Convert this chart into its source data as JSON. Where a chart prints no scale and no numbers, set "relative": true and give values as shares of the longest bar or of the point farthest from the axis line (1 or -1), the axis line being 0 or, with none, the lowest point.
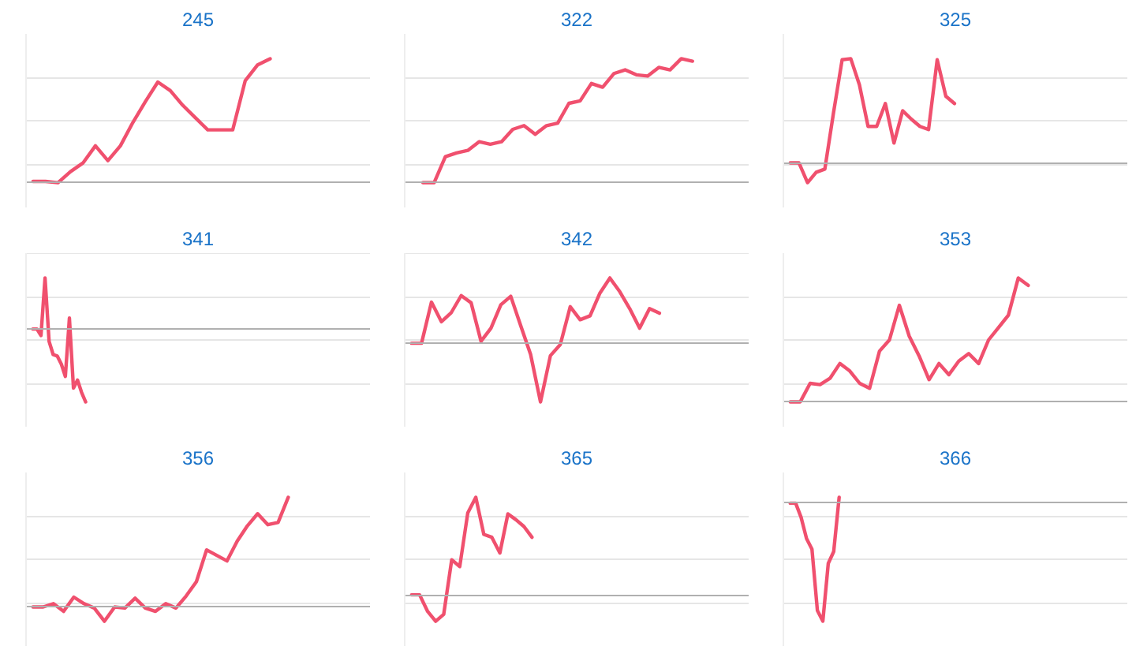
{
  "chart_data": [
    {
      "type": "line",
      "title": "245",
      "relative": true,
      "grid": "y",
      "color": "#f0506e",
      "categories": [
        null,
        null,
        null,
        null,
        null,
        null,
        null,
        null,
        null,
        null,
        null,
        null,
        null,
        null,
        null,
        null,
        null,
        null,
        null,
        null,
        null,
        null,
        null,
        null,
        null,
        null,
        null,
        null
      ],
      "values": [
        0,
        0,
        -0.01,
        0.08,
        0.15,
        0.29,
        0.17,
        0.29,
        0.48,
        0.65,
        0.81,
        0.74,
        0.62,
        0.52,
        0.42,
        0.42,
        0.42,
        0.82,
        0.95,
        1.0,
        null,
        null,
        null,
        null,
        null,
        null,
        null,
        null
      ]
    },
    {
      "type": "line",
      "title": "322",
      "relative": true,
      "grid": "y",
      "color": "#f0506e",
      "categories": [
        null,
        null,
        null,
        null,
        null,
        null,
        null,
        null,
        null,
        null,
        null,
        null,
        null,
        null,
        null,
        null,
        null,
        null,
        null,
        null,
        null,
        null,
        null,
        null,
        null,
        null,
        null,
        null,
        null,
        null,
        null
      ],
      "values": [
        null,
        0,
        0,
        0.21,
        0.24,
        0.26,
        0.33,
        0.31,
        0.33,
        0.43,
        0.46,
        0.39,
        0.46,
        0.48,
        0.64,
        0.66,
        0.8,
        0.77,
        0.88,
        0.91,
        0.87,
        0.86,
        0.93,
        0.91,
        1.0,
        0.98,
        null,
        null,
        null,
        null,
        null
      ]
    },
    {
      "type": "line",
      "title": "325",
      "relative": true,
      "grid": "y",
      "color": "#f0506e",
      "categories": [
        null,
        null,
        null,
        null,
        null,
        null,
        null,
        null,
        null,
        null,
        null,
        null,
        null,
        null,
        null,
        null,
        null,
        null,
        null,
        null,
        null,
        null,
        null,
        null,
        null,
        null,
        null,
        null,
        null,
        null,
        null,
        null,
        null,
        null,
        null,
        null,
        null,
        null,
        null,
        null
      ],
      "values": [
        0,
        0,
        -0.19,
        -0.09,
        -0.06,
        0.48,
        0.99,
        1.0,
        0.75,
        0.35,
        0.35,
        0.57,
        0.19,
        0.5,
        0.42,
        0.35,
        0.32,
        0.99,
        0.64,
        0.57,
        null,
        null,
        null,
        null,
        null,
        null,
        null,
        null,
        null,
        null,
        null,
        null,
        null,
        null,
        null,
        null,
        null,
        null,
        null,
        null
      ]
    },
    {
      "type": "line",
      "title": "341",
      "relative": true,
      "grid": "y",
      "color": "#f0506e",
      "categories": [
        null,
        null,
        null,
        null,
        null,
        null,
        null,
        null,
        null,
        null,
        null,
        null,
        null,
        null,
        null,
        null,
        null,
        null,
        null,
        null,
        null,
        null,
        null,
        null,
        null,
        null,
        null,
        null,
        null,
        null,
        null,
        null,
        null,
        null,
        null,
        null,
        null,
        null,
        null,
        null,
        null,
        null,
        null,
        null,
        null,
        null,
        null,
        null,
        null,
        null,
        null,
        null,
        null,
        null,
        null,
        null,
        null,
        null,
        null,
        null,
        null,
        null,
        null,
        null,
        null,
        null,
        null,
        null,
        null,
        null,
        null,
        null,
        null,
        null,
        null,
        null,
        null,
        null,
        null,
        null,
        null,
        null,
        null,
        null
      ],
      "values": [
        0,
        0,
        -0.09,
        0.7,
        -0.17,
        -0.35,
        -0.37,
        -0.48,
        -0.65,
        0.15,
        -0.81,
        -0.7,
        -0.87,
        -1.0,
        null,
        null,
        null,
        null,
        null,
        null,
        null,
        null,
        null,
        null,
        null,
        null,
        null,
        null,
        null,
        null,
        null,
        null,
        null,
        null,
        null,
        null,
        null,
        null,
        null,
        null,
        null,
        null,
        null,
        null,
        null,
        null,
        null,
        null,
        null,
        null,
        null,
        null,
        null,
        null,
        null,
        null,
        null,
        null,
        null,
        null,
        null,
        null,
        null,
        null,
        null,
        null,
        null,
        null,
        null,
        null,
        null,
        null,
        null,
        null,
        null,
        null,
        null,
        null,
        null,
        null,
        null,
        null,
        null,
        null
      ]
    },
    {
      "type": "line",
      "title": "342",
      "relative": true,
      "grid": "y",
      "color": "#f0506e",
      "categories": [
        null,
        null,
        null,
        null,
        null,
        null,
        null,
        null,
        null,
        null,
        null,
        null,
        null,
        null,
        null,
        null,
        null,
        null,
        null,
        null,
        null,
        null,
        null,
        null,
        null,
        null,
        null,
        null,
        null,
        null,
        null,
        null,
        null,
        null,
        null
      ],
      "values": [
        0,
        0,
        0.63,
        0.33,
        0.47,
        0.73,
        0.62,
        0.03,
        0.23,
        0.59,
        0.72,
        0.27,
        -0.17,
        -0.9,
        -0.19,
        -0.02,
        0.56,
        0.36,
        0.42,
        0.77,
        1.0,
        0.79,
        0.53,
        0.23,
        0.53,
        0.46,
        null,
        null,
        null,
        null,
        null,
        null,
        null,
        null,
        null
      ]
    },
    {
      "type": "line",
      "title": "353",
      "relative": true,
      "grid": "y",
      "color": "#f0506e",
      "categories": [
        null,
        null,
        null,
        null,
        null,
        null,
        null,
        null,
        null,
        null,
        null,
        null,
        null,
        null,
        null,
        null,
        null,
        null,
        null,
        null,
        null,
        null,
        null,
        null,
        null,
        null,
        null,
        null,
        null,
        null,
        null,
        null,
        null,
        null,
        null
      ],
      "values": [
        0,
        0,
        0.15,
        0.14,
        0.19,
        0.31,
        0.25,
        0.15,
        0.11,
        0.41,
        0.5,
        0.78,
        0.53,
        0.37,
        0.18,
        0.31,
        0.22,
        0.33,
        0.39,
        0.31,
        0.5,
        0.6,
        0.7,
        1.0,
        0.94,
        null,
        null,
        null,
        null,
        null,
        null,
        null,
        null,
        null,
        null
      ]
    },
    {
      "type": "line",
      "title": "356",
      "relative": true,
      "grid": "y",
      "color": "#f0506e",
      "categories": [
        null,
        null,
        null,
        null,
        null,
        null,
        null,
        null,
        null,
        null,
        null,
        null,
        null,
        null,
        null,
        null,
        null,
        null,
        null,
        null,
        null,
        null,
        null,
        null,
        null,
        null,
        null,
        null,
        null,
        null,
        null,
        null,
        null,
        null
      ],
      "values": [
        0,
        0,
        0.03,
        -0.04,
        0.09,
        0.03,
        -0.01,
        -0.13,
        0,
        -0.01,
        0.08,
        -0.01,
        -0.04,
        0.03,
        -0.01,
        0.1,
        0.23,
        0.52,
        0.47,
        0.42,
        0.6,
        0.74,
        0.85,
        0.75,
        0.77,
        1.0,
        null,
        null,
        null,
        null,
        null,
        null,
        null,
        null
      ]
    },
    {
      "type": "line",
      "title": "365",
      "relative": true,
      "grid": "y",
      "color": "#f0506e",
      "categories": [
        null,
        null,
        null,
        null,
        null,
        null,
        null,
        null,
        null,
        null,
        null,
        null,
        null,
        null,
        null,
        null,
        null,
        null,
        null,
        null,
        null,
        null,
        null,
        null,
        null,
        null,
        null,
        null,
        null,
        null,
        null,
        null,
        null,
        null,
        null,
        null,
        null,
        null,
        null,
        null,
        null,
        null,
        null
      ],
      "values": [
        0,
        0,
        -0.17,
        -0.27,
        -0.2,
        0.36,
        0.29,
        0.84,
        1.0,
        0.62,
        0.59,
        0.43,
        0.83,
        0.77,
        0.7,
        0.59,
        null,
        null,
        null,
        null,
        null,
        null,
        null,
        null,
        null,
        null,
        null,
        null,
        null,
        null,
        null,
        null,
        null,
        null,
        null,
        null,
        null,
        null,
        null,
        null,
        null,
        null,
        null
      ]
    },
    {
      "type": "line",
      "title": "366",
      "relative": true,
      "grid": "y",
      "color": "#f0506e",
      "categories": [
        null,
        null,
        null,
        null,
        null,
        null,
        null,
        null,
        null,
        null,
        null,
        null,
        null,
        null,
        null,
        null,
        null,
        null,
        null,
        null,
        null,
        null,
        null,
        null,
        null,
        null,
        null,
        null,
        null,
        null,
        null,
        null,
        null,
        null,
        null,
        null,
        null,
        null,
        null,
        null,
        null,
        null,
        null,
        null,
        null,
        null,
        null,
        null,
        null,
        null,
        null,
        null,
        null,
        null,
        null,
        null,
        null,
        null,
        null,
        null,
        null,
        null,
        null
      ],
      "values": [
        0,
        0,
        -0.12,
        -0.3,
        -0.39,
        -0.91,
        -1.0,
        -0.51,
        -0.41,
        0.05,
        null,
        null,
        null,
        null,
        null,
        null,
        null,
        null,
        null,
        null,
        null,
        null,
        null,
        null,
        null,
        null,
        null,
        null,
        null,
        null,
        null,
        null,
        null,
        null,
        null,
        null,
        null,
        null,
        null,
        null,
        null,
        null,
        null,
        null,
        null,
        null,
        null,
        null,
        null,
        null,
        null,
        null,
        null,
        null,
        null,
        null,
        null,
        null,
        null,
        null,
        null,
        null,
        null
      ]
    }
  ]
}
